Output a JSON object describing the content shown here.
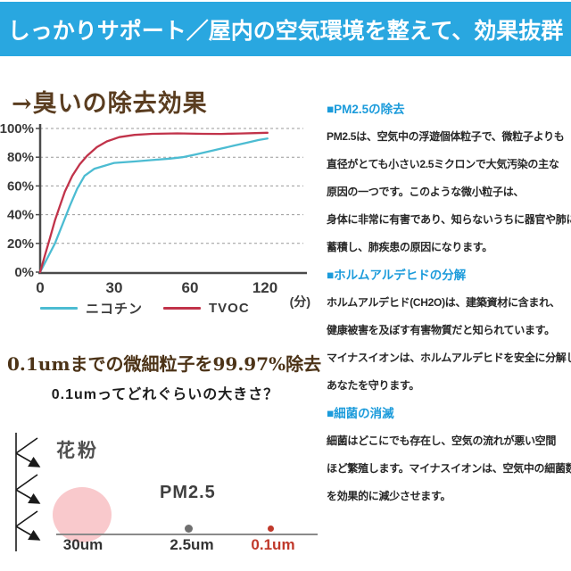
{
  "banner": {
    "text": "しっかりサポート／屋内の空気環境を整えて、効果抜群",
    "bg_color": "#29a7e0",
    "text_color": "#ffffff"
  },
  "odor_section": {
    "title": "→臭いの除去効果",
    "title_color": "#5a3d20"
  },
  "chart_data": {
    "type": "line",
    "title": "臭いの除去効果",
    "xlabel": "(分)",
    "ylabel": "",
    "x_unit_label": "(分)",
    "xticks": [
      {
        "value": 0,
        "label": "0"
      },
      {
        "value": 30,
        "label": "30"
      },
      {
        "value": 60,
        "label": "60"
      },
      {
        "value": 120,
        "label": "120"
      }
    ],
    "yticks": [
      {
        "value": 0,
        "label": "0%"
      },
      {
        "value": 20,
        "label": "20%"
      },
      {
        "value": 40,
        "label": "40%"
      },
      {
        "value": 60,
        "label": "60%"
      },
      {
        "value": 80,
        "label": "80%"
      },
      {
        "value": 100,
        "label": "100%"
      }
    ],
    "ylim": [
      0,
      100
    ],
    "grid": "dashed-horizontal",
    "legend_position": "bottom",
    "x_axis_note": "equal spacing between ticks 0/30/60/120 minutes",
    "series": [
      {
        "name": "ニコチン",
        "color": "#4cbcd2",
        "points": [
          [
            0,
            0
          ],
          [
            3,
            10
          ],
          [
            6,
            20
          ],
          [
            9,
            33
          ],
          [
            12,
            46
          ],
          [
            15,
            58
          ],
          [
            18,
            67
          ],
          [
            22,
            72
          ],
          [
            26,
            74
          ],
          [
            30,
            76
          ],
          [
            38,
            77
          ],
          [
            45,
            78
          ],
          [
            52,
            79
          ],
          [
            57,
            80
          ],
          [
            65,
            82
          ],
          [
            75,
            84
          ],
          [
            85,
            86
          ],
          [
            95,
            88
          ],
          [
            105,
            90
          ],
          [
            115,
            92
          ],
          [
            122,
            93
          ]
        ]
      },
      {
        "name": "TVOC",
        "color": "#c1334a",
        "points": [
          [
            0,
            0
          ],
          [
            2,
            12
          ],
          [
            4,
            24
          ],
          [
            6,
            36
          ],
          [
            8,
            46
          ],
          [
            10,
            56
          ],
          [
            13,
            67
          ],
          [
            16,
            75
          ],
          [
            19,
            81
          ],
          [
            23,
            87
          ],
          [
            27,
            91
          ],
          [
            32,
            94
          ],
          [
            38,
            95.5
          ],
          [
            45,
            96.3
          ],
          [
            55,
            96.6
          ],
          [
            70,
            96.3
          ],
          [
            85,
            96.2
          ],
          [
            100,
            96.5
          ],
          [
            112,
            96.8
          ],
          [
            122,
            97
          ]
        ]
      }
    ]
  },
  "particle_section": {
    "heading": "0.1umまでの微細粒子を99.97%除去",
    "subheading": "0.1umってどれぐらいの大きさ？",
    "pollen_label": "花粉",
    "pm25_label": "PM2.5",
    "scale": [
      {
        "label": "30um",
        "color": "#333333",
        "dot": "large-pink-circle",
        "dot_color": "#f9c9cc"
      },
      {
        "label": "2.5um",
        "color": "#333333",
        "dot": "small-gray-dot",
        "dot_color": "#6f6f6f"
      },
      {
        "label": "0.1um",
        "color": "#c0392b",
        "dot": "tiny-red-dot",
        "dot_color": "#c0392b"
      }
    ]
  },
  "info_sections": [
    {
      "heading": "■PM2.5の除去",
      "heading_color": "#1b9bdb",
      "body": [
        "PM2.5は、空気中の浮遊個体粒子で、微粒子よりも",
        "直径がとても小さい2.5ミクロンで大気汚染の主な",
        "原因の一つです。このような微小粒子は、",
        "身体に非常に有害であり、知らないうちに器官や肺に",
        "蓄積し、肺疾患の原因になります。"
      ]
    },
    {
      "heading": "■ホルムアルデヒドの分解",
      "heading_color": "#1b9bdb",
      "body": [
        "ホルムアルデヒド(CH2O)は、建築資材に含まれ、",
        "健康被害を及ぼす有害物質だと知られています。",
        "マイナスイオンは、ホルムアルデヒドを安全に分解し、",
        "あなたを守ります。"
      ]
    },
    {
      "heading": "■細菌の消滅",
      "heading_color": "#1b9bdb",
      "body": [
        "細菌はどこにでも存在し、空気の流れが悪い空間",
        "ほど繁殖します。マイナスイオンは、空気中の細菌数",
        "を効果的に減少させます。"
      ]
    }
  ]
}
